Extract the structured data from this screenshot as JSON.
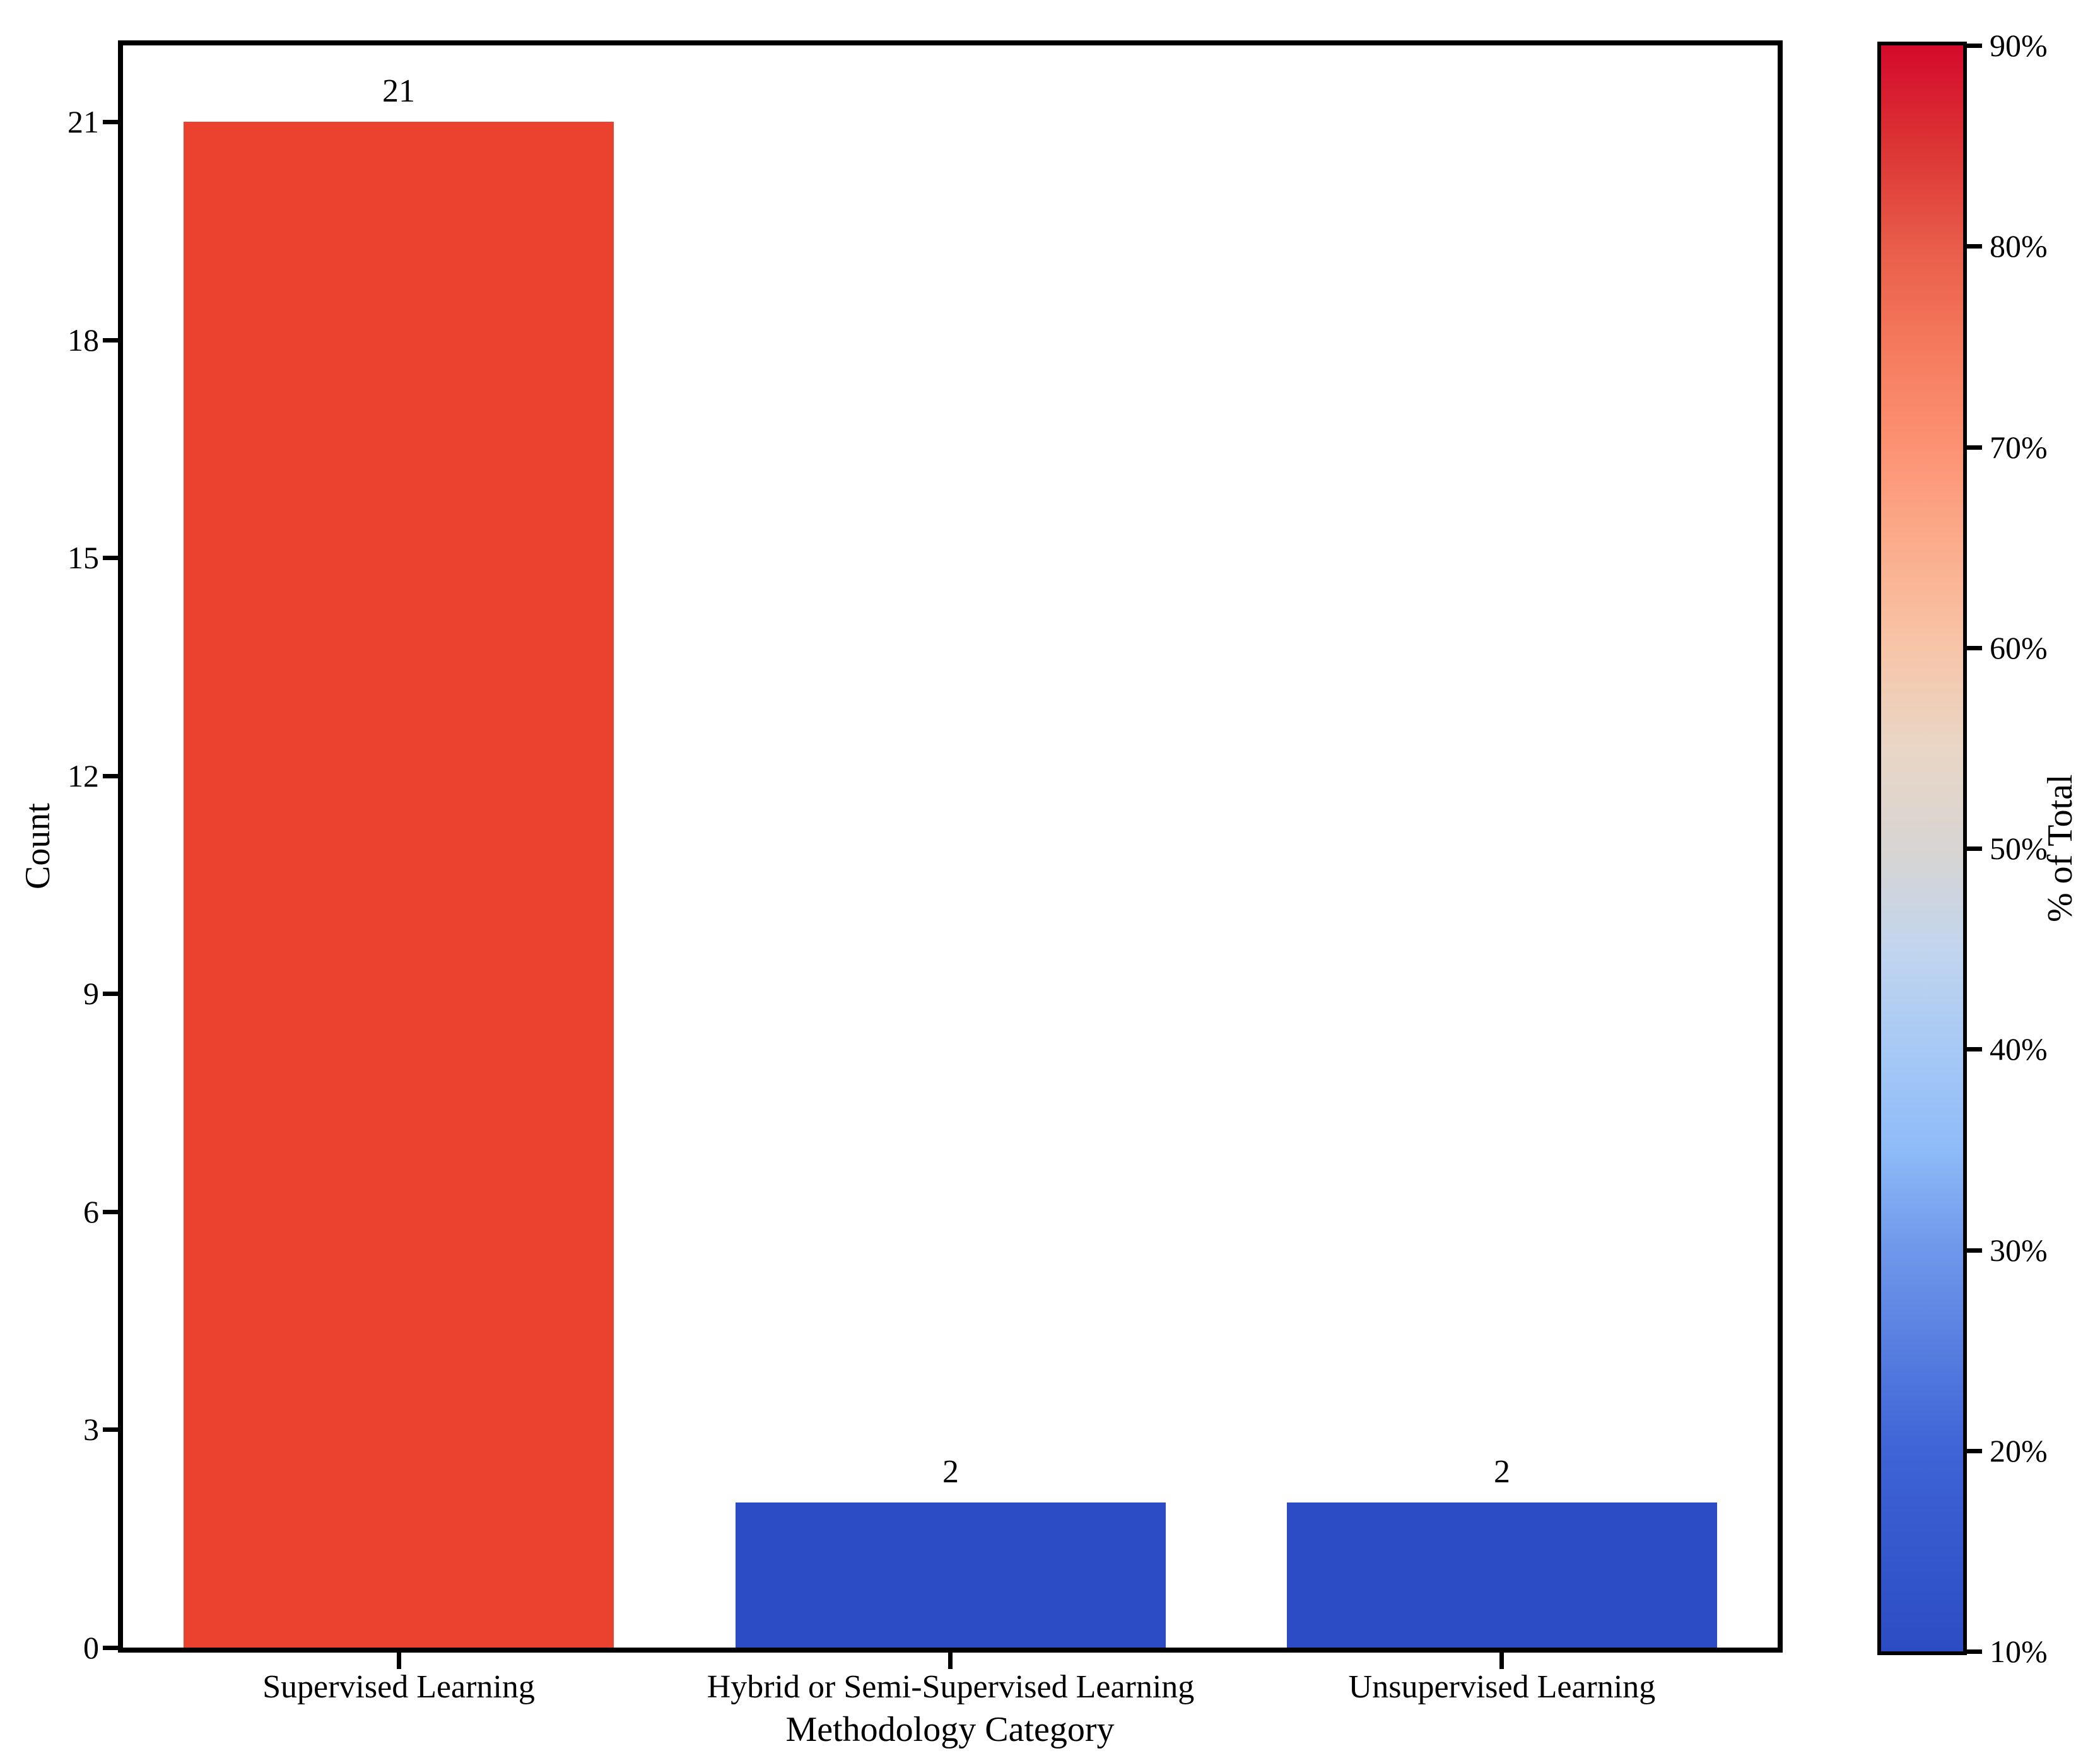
{
  "figure": {
    "background": "#ffffff"
  },
  "chart_data": {
    "type": "bar",
    "title": "",
    "xlabel": "Methodology Category",
    "ylabel": "Count",
    "categories": [
      "Supervised Learning",
      "Hybrid or Semi-Supervised Learning",
      "Unsupervised Learning"
    ],
    "values": [
      21,
      2,
      2
    ],
    "bar_value_labels": [
      "21",
      "2",
      "2"
    ],
    "bar_colors": [
      "#ea422e",
      "#2c4cc5",
      "#2c4cc5"
    ],
    "ylim": [
      0,
      22.05
    ],
    "yticks": [
      0,
      3,
      6,
      9,
      12,
      15,
      18,
      21
    ],
    "grid": false,
    "legend_position": "none",
    "axis_color": "#000000",
    "text_color": "#000000",
    "colorbar": {
      "label": "% of Total",
      "orientation": "vertical",
      "colormap": "coolwarm",
      "range_min_pct": 10,
      "range_max_pct": 90,
      "tick_values": [
        90,
        80,
        70,
        60,
        50,
        40,
        30,
        20,
        10
      ],
      "tick_labels": [
        "90%",
        "80%",
        "70%",
        "60%",
        "50%",
        "40%",
        "30%",
        "20%",
        "10%"
      ],
      "gradient_stops": [
        {
          "pos": 0.0,
          "color": "#2c4cc4"
        },
        {
          "pos": 0.125,
          "color": "#3e64d6"
        },
        {
          "pos": 0.25,
          "color": "#6f97ea"
        },
        {
          "pos": 0.3125,
          "color": "#8ebbf8"
        },
        {
          "pos": 0.375,
          "color": "#a7c9f5"
        },
        {
          "pos": 0.4375,
          "color": "#c2d5ee"
        },
        {
          "pos": 0.5,
          "color": "#d8d5d2"
        },
        {
          "pos": 0.5625,
          "color": "#e9d6c6"
        },
        {
          "pos": 0.625,
          "color": "#f7c5a8"
        },
        {
          "pos": 0.6875,
          "color": "#fbad8c"
        },
        {
          "pos": 0.75,
          "color": "#fc9273"
        },
        {
          "pos": 0.8125,
          "color": "#f57a5d"
        },
        {
          "pos": 0.875,
          "color": "#e85c49"
        },
        {
          "pos": 0.9375,
          "color": "#dc3434"
        },
        {
          "pos": 1.0,
          "color": "#d40a2b"
        }
      ]
    }
  }
}
